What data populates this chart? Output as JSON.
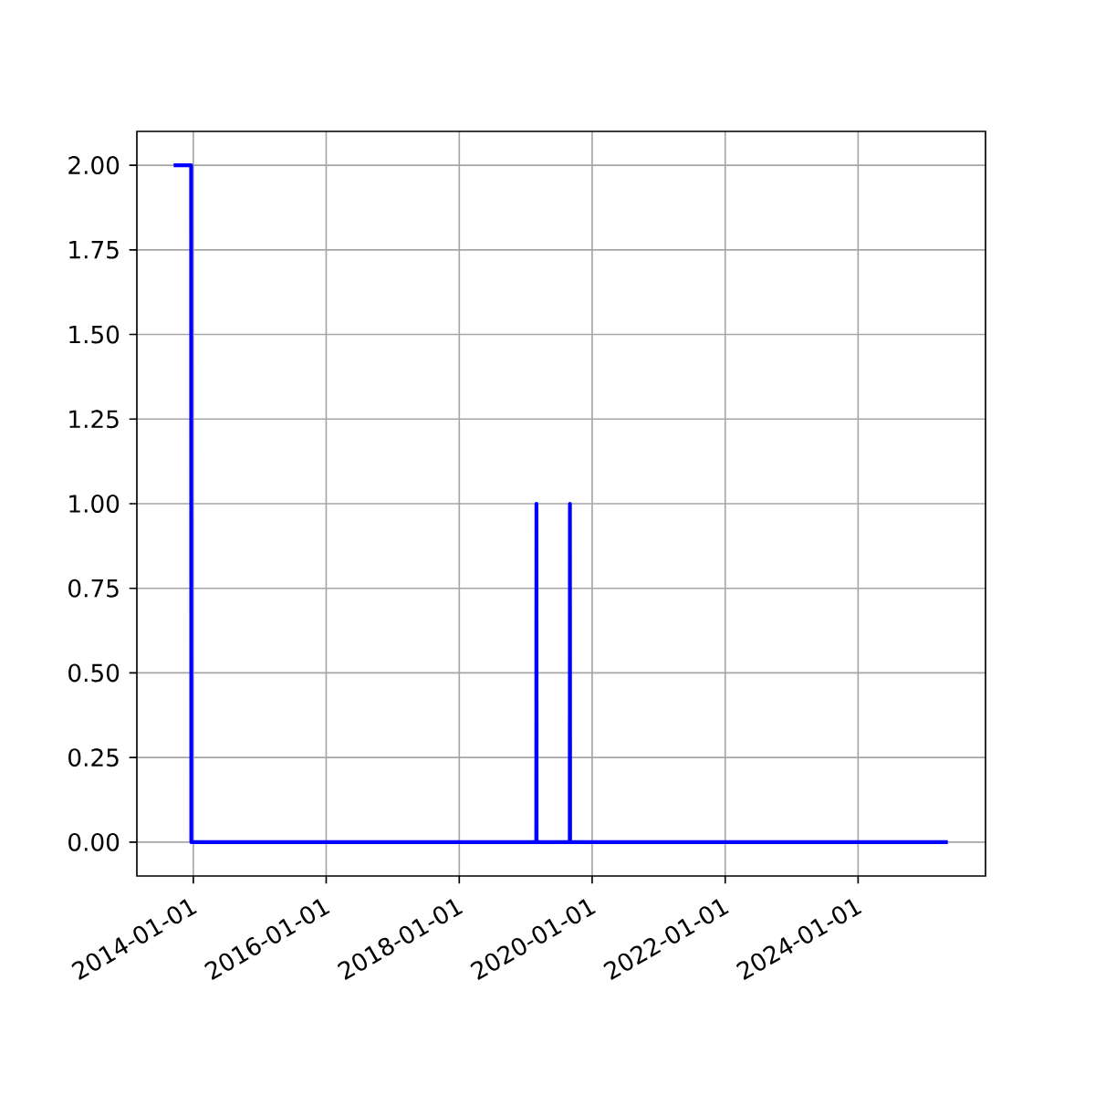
{
  "chart_data": {
    "type": "line",
    "x": [
      "2013-09-15",
      "2013-12-20",
      "2013-12-21",
      "2019-02-28",
      "2019-03-01",
      "2019-03-02",
      "2019-08-31",
      "2019-09-01",
      "2019-09-02",
      "2025-05-08"
    ],
    "series": [
      {
        "color": "#0000ff",
        "values": [
          2,
          2,
          0,
          0,
          1,
          0,
          0,
          1,
          0,
          0
        ]
      }
    ],
    "xlim": [
      "2013-02-25",
      "2025-12-01"
    ],
    "xticks": [
      "2014-01-01",
      "2016-01-01",
      "2018-01-01",
      "2020-01-01",
      "2022-01-01",
      "2024-01-01"
    ],
    "ylim": [
      -0.1,
      2.1
    ],
    "yticks": [
      {
        "value": 0,
        "label": "0.00"
      },
      {
        "value": 0.25,
        "label": "0.25"
      },
      {
        "value": 0.5,
        "label": "0.50"
      },
      {
        "value": 0.75,
        "label": "0.75"
      },
      {
        "value": 1,
        "label": "1.00"
      },
      {
        "value": 1.25,
        "label": "1.25"
      },
      {
        "value": 1.5,
        "label": "1.50"
      },
      {
        "value": 1.75,
        "label": "1.75"
      },
      {
        "value": 2,
        "label": "2.00"
      }
    ],
    "grid": true,
    "marker": "none",
    "line_style": "solid"
  }
}
